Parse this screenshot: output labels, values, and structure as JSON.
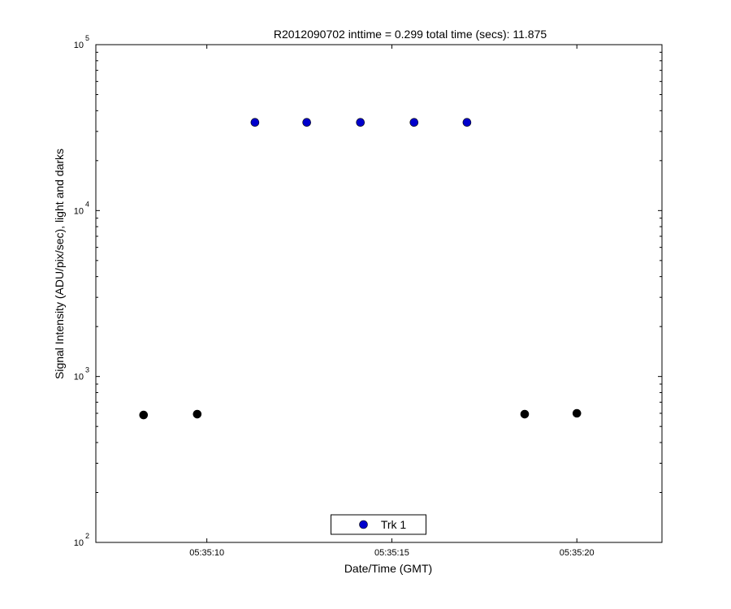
{
  "chart_data": {
    "type": "scatter",
    "title": "R2012090702 inttime = 0.299 total time (secs): 11.875",
    "xlabel": "Date/Time (GMT)",
    "ylabel": "Signal Intensity (ADU/pix/sec), light and darks",
    "yscale": "log",
    "xlim": [
      7,
      22.3
    ],
    "xticks": [
      {
        "value": 10,
        "label": "05:35:10"
      },
      {
        "value": 15,
        "label": "05:35:15"
      },
      {
        "value": 20,
        "label": "05:35:20"
      }
    ],
    "ylim": [
      100,
      100000
    ],
    "yticks": [
      {
        "value": 100,
        "label": "10",
        "exponent": "2"
      },
      {
        "value": 1000,
        "label": "10",
        "exponent": "3"
      },
      {
        "value": 10000,
        "label": "10",
        "exponent": "4"
      },
      {
        "value": 100000,
        "label": "10",
        "exponent": "5"
      }
    ],
    "legend": "bottom",
    "series": [
      {
        "name": "Trk 1",
        "color": "#0000cc",
        "x": [
          11.3,
          12.7,
          14.15,
          15.6,
          17.03
        ],
        "values": [
          34000,
          34000,
          34000,
          34000,
          34000
        ]
      },
      {
        "color": "#000000",
        "x": [
          8.29,
          9.74,
          18.59,
          20.0
        ],
        "values": [
          586,
          593,
          593,
          600
        ]
      }
    ]
  }
}
